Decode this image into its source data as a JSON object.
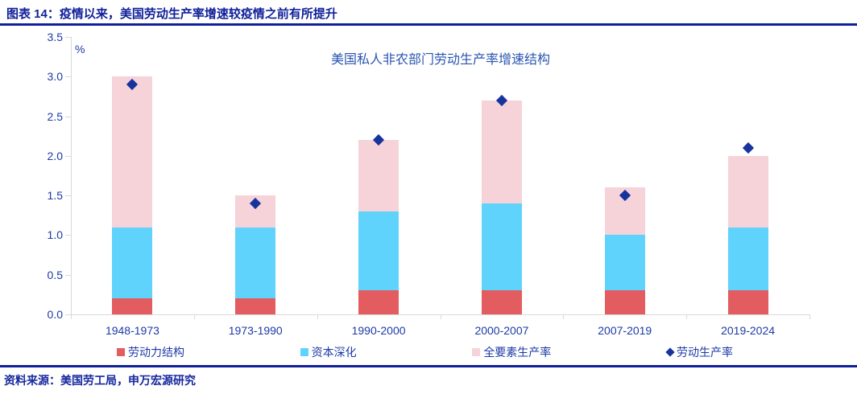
{
  "figure": {
    "caption": "图表 14：疫情以来，美国劳动生产率增速较疫情之前有所提升",
    "source_label": "资料来源：美国劳工局，申万宏源研究"
  },
  "colors": {
    "heading_navy": "#0F1F99",
    "axis_text_blue": "#1C3AA6",
    "chart_title_blue": "#2A55B0",
    "source_navy": "#16289E",
    "axis_line_gray": "#D9D9D9",
    "labor_structure_red": "#E25C60",
    "capital_deepening_blue": "#5FD3FB",
    "tfp_pink": "#F5D3D8",
    "productivity_navy": "#17349E"
  },
  "chart_data": {
    "type": "bar",
    "stacked": true,
    "title": "美国私人非农部门劳动生产率增速结构",
    "unit_label": "%",
    "categories": [
      "1948-1973",
      "1973-1990",
      "1990-2000",
      "2000-2007",
      "2007-2019",
      "2019-2024"
    ],
    "series": [
      {
        "name": "劳动力结构",
        "type": "bar",
        "color": "#E25C60",
        "values": [
          0.2,
          0.2,
          0.3,
          0.3,
          0.3,
          0.3
        ]
      },
      {
        "name": "资本深化",
        "type": "bar",
        "color": "#5FD3FB",
        "values": [
          0.9,
          0.9,
          1.0,
          1.1,
          0.7,
          0.8
        ]
      },
      {
        "name": "全要素生产率",
        "type": "bar",
        "color": "#F5D3D8",
        "values": [
          1.9,
          0.4,
          0.9,
          1.3,
          0.6,
          0.9
        ]
      },
      {
        "name": "劳动生产率",
        "type": "scatter",
        "marker": "diamond",
        "color": "#17349E",
        "values": [
          2.9,
          1.4,
          2.2,
          2.7,
          1.5,
          2.1
        ]
      }
    ],
    "stacked_totals": [
      3.0,
      1.5,
      2.2,
      2.7,
      1.6,
      2.0
    ],
    "y_axis": {
      "min": 0,
      "max": 3.5,
      "step": 0.5
    },
    "grid": false,
    "legend_position": "bottom"
  }
}
